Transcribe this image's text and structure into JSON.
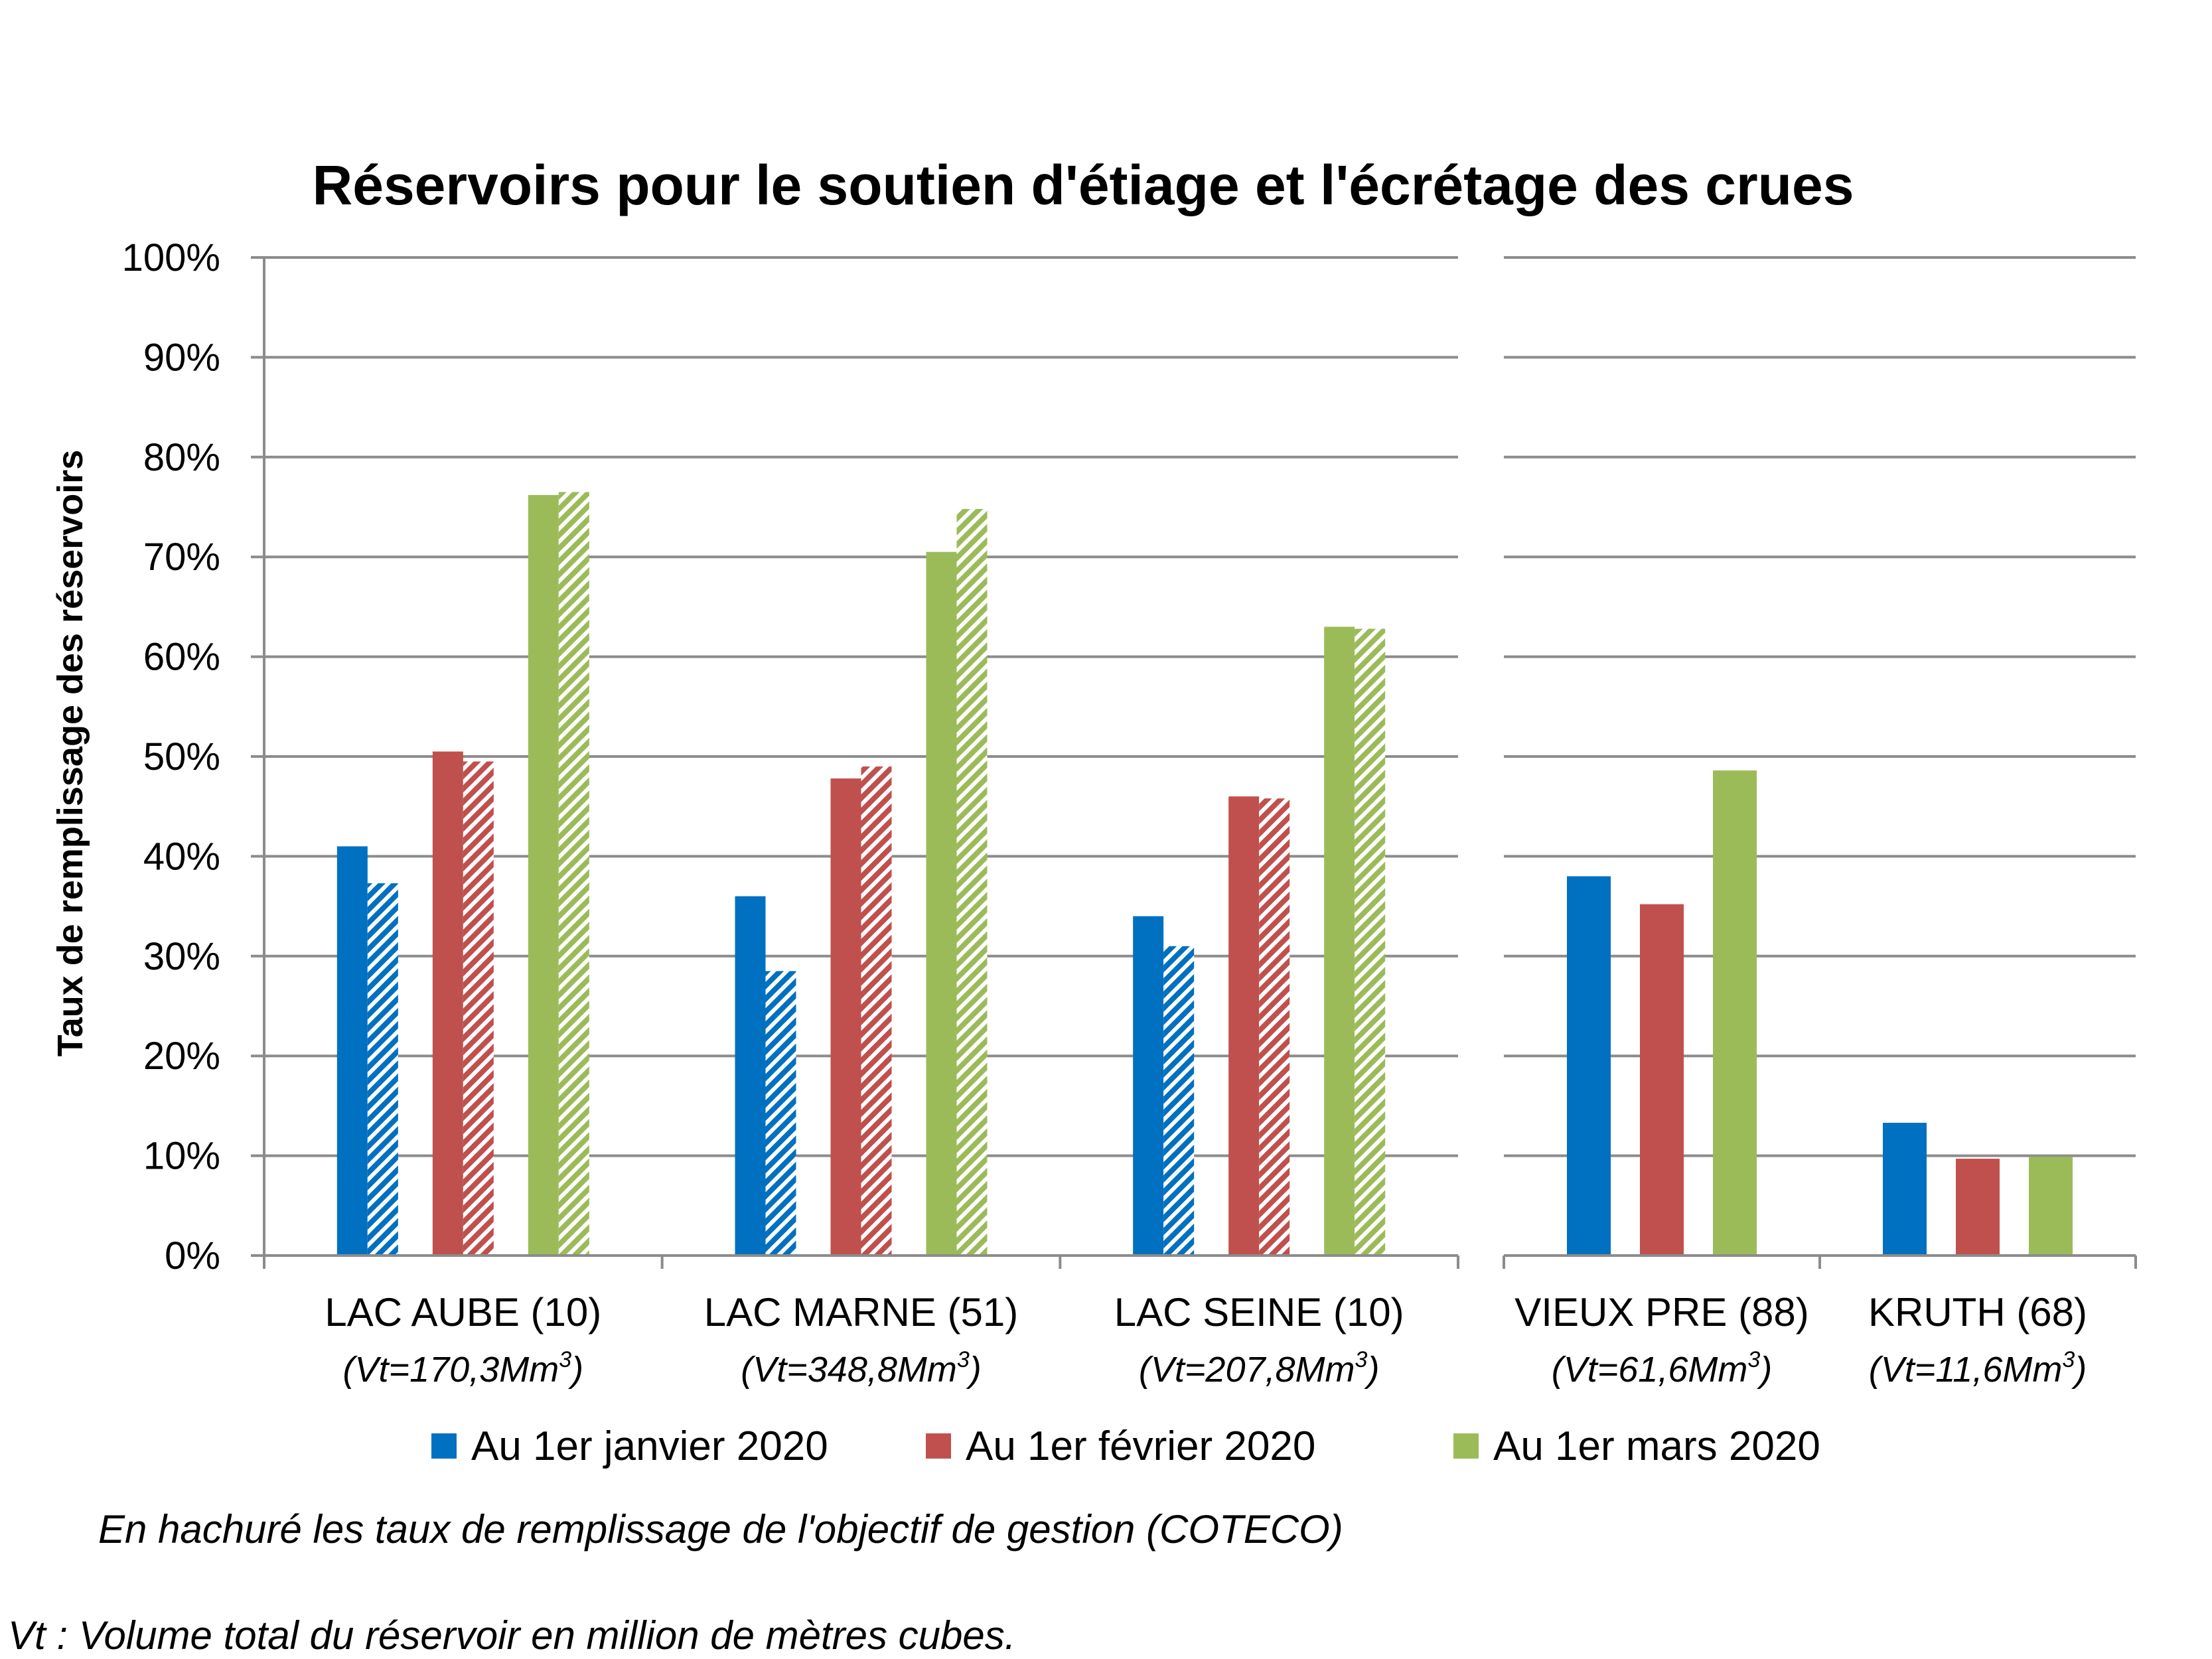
{
  "chart_data": {
    "type": "bar",
    "title": "Réservoirs pour le soutien d'étiage et l'écrétage des crues",
    "ylabel": "Taux de remplissage des réservoirs",
    "xlabel": "",
    "ylim": [
      0,
      100
    ],
    "yticks": [
      "0%",
      "10%",
      "20%",
      "30%",
      "40%",
      "50%",
      "60%",
      "70%",
      "80%",
      "90%",
      "100%"
    ],
    "grid": true,
    "legend_position": "bottom",
    "categories": [
      {
        "name": "LAC AUBE (10)",
        "volume_prefix": "(Vt=170,3Mm",
        "volume_sup": "3",
        "volume_suffix": ")"
      },
      {
        "name": "LAC MARNE (51)",
        "volume_prefix": "(Vt=348,8Mm",
        "volume_sup": "3",
        "volume_suffix": ")"
      },
      {
        "name": "LAC SEINE (10)",
        "volume_prefix": "(Vt=207,8Mm",
        "volume_sup": "3",
        "volume_suffix": ")"
      },
      {
        "name": "VIEUX PRE (88)",
        "volume_prefix": "(Vt=61,6Mm",
        "volume_sup": "3",
        "volume_suffix": ")"
      },
      {
        "name": "KRUTH (68)",
        "volume_prefix": "(Vt=11,6Mm",
        "volume_sup": "3",
        "volume_suffix": ")"
      }
    ],
    "series": [
      {
        "name": "Au 1er janvier 2020",
        "color": "#0070C0",
        "values": [
          41,
          36,
          34,
          38,
          13.3
        ],
        "objectif": [
          37.3,
          28.5,
          31,
          null,
          null
        ]
      },
      {
        "name": "Au 1er février 2020",
        "color": "#C0504D",
        "values": [
          50.5,
          47.8,
          46,
          35.2,
          9.7
        ],
        "objectif": [
          49.5,
          49,
          45.8,
          null,
          null
        ]
      },
      {
        "name": "Au 1er mars 2020",
        "color": "#9BBB59",
        "values": [
          76.2,
          70.5,
          63,
          48.6,
          9.9
        ],
        "objectif": [
          76.5,
          74.8,
          62.8,
          null,
          null
        ]
      }
    ],
    "hatch_note": "En hachuré les taux de remplissage de l'objectif de gestion (COTECO)"
  },
  "footnote": "Vt : Volume total du réservoir en million de mètres cubes."
}
